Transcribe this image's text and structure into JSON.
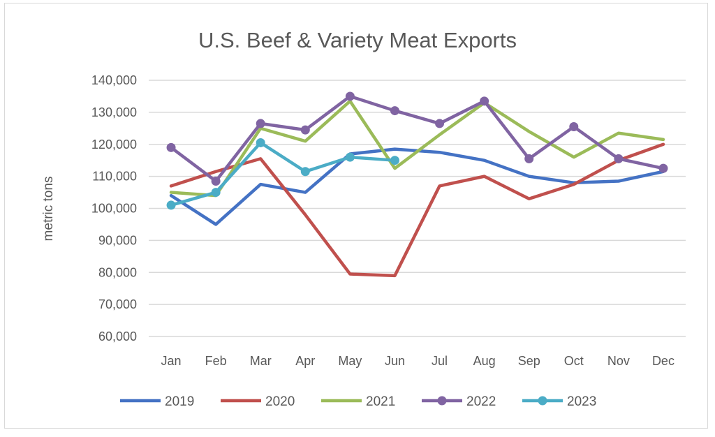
{
  "chart_data": {
    "type": "line",
    "title": "U.S. Beef & Variety Meat Exports",
    "xlabel": "",
    "ylabel": "metric tons",
    "ylim": [
      60000,
      140000
    ],
    "yticks": [
      60000,
      70000,
      80000,
      90000,
      100000,
      110000,
      120000,
      130000,
      140000
    ],
    "ytick_labels": [
      "60,000",
      "70,000",
      "80,000",
      "90,000",
      "100,000",
      "110,000",
      "120,000",
      "130,000",
      "140,000"
    ],
    "categories": [
      "Jan",
      "Feb",
      "Mar",
      "Apr",
      "May",
      "Jun",
      "Jul",
      "Aug",
      "Sep",
      "Oct",
      "Nov",
      "Dec"
    ],
    "grid": true,
    "legend_position": "bottom",
    "series": [
      {
        "name": "2019",
        "color": "#4472c4",
        "markers": false,
        "values": [
          104000,
          95000,
          107500,
          105000,
          117000,
          118500,
          117500,
          115000,
          110000,
          108000,
          108500,
          111500
        ]
      },
      {
        "name": "2020",
        "color": "#c0504d",
        "markers": false,
        "values": [
          107000,
          111500,
          115500,
          98000,
          79500,
          79000,
          107000,
          110000,
          103000,
          107500,
          115000,
          120000
        ]
      },
      {
        "name": "2021",
        "color": "#9bbb59",
        "markers": false,
        "values": [
          105000,
          104000,
          125000,
          121000,
          133500,
          112500,
          123000,
          133000,
          124000,
          116000,
          123500,
          121500
        ]
      },
      {
        "name": "2022",
        "color": "#8064a2",
        "markers": true,
        "values": [
          119000,
          108500,
          126500,
          124500,
          135000,
          130500,
          126500,
          133500,
          115500,
          125500,
          115500,
          112500
        ]
      },
      {
        "name": "2023",
        "color": "#4bacc6",
        "markers": true,
        "values": [
          101000,
          105000,
          120500,
          111500,
          116000,
          115000,
          null,
          null,
          null,
          null,
          null,
          null
        ]
      }
    ]
  }
}
